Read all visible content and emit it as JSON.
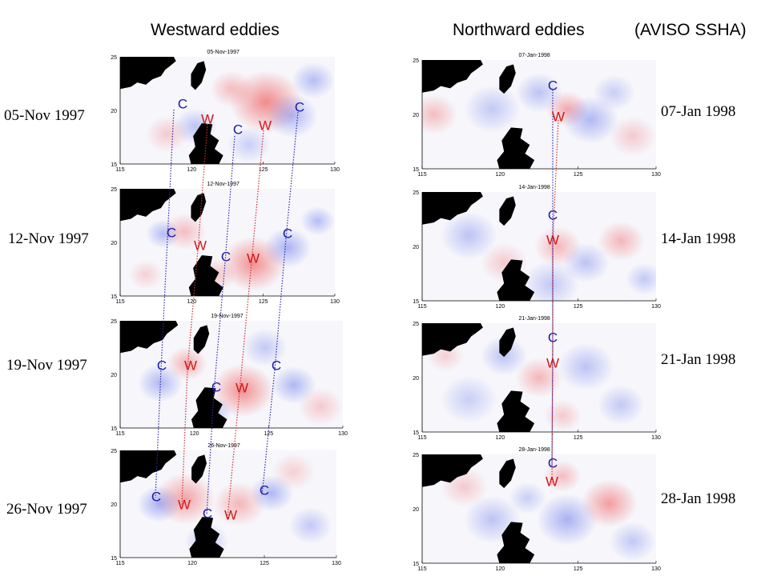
{
  "headers": {
    "westward": "Westward eddies",
    "northward": "Northward eddies",
    "source": "(AVISO SSHA)"
  },
  "colors": {
    "cyclone": "#1a1aa8",
    "warm": "#d01818",
    "land": "#000000",
    "track_cyclone": "#2b2bb0",
    "track_warm": "#d03030"
  },
  "axes": {
    "x_ticks": [
      "115",
      "120",
      "125",
      "130"
    ],
    "y_ticks": [
      "25",
      "20",
      "15"
    ]
  },
  "markers": {
    "cyclone": "C",
    "warm": "W"
  },
  "panels_west": [
    {
      "title": "05-Nov-1997",
      "label": "05-Nov 1997"
    },
    {
      "title": "12-Nov-1997",
      "label": "12-Nov 1997"
    },
    {
      "title": "19-Nov-1997",
      "label": "19-Nov 1997"
    },
    {
      "title": "26-Nov-1997",
      "label": "26-Nov 1997"
    }
  ],
  "panels_north": [
    {
      "title": "07-Jan-1998",
      "label": "07-Jan 1998"
    },
    {
      "title": "14-Jan-1998",
      "label": "14-Jan 1998"
    },
    {
      "title": "21-Jan-1998",
      "label": "21-Jan 1998"
    },
    {
      "title": "28-Jan-1998",
      "label": "28-Jan 1998"
    }
  ]
}
